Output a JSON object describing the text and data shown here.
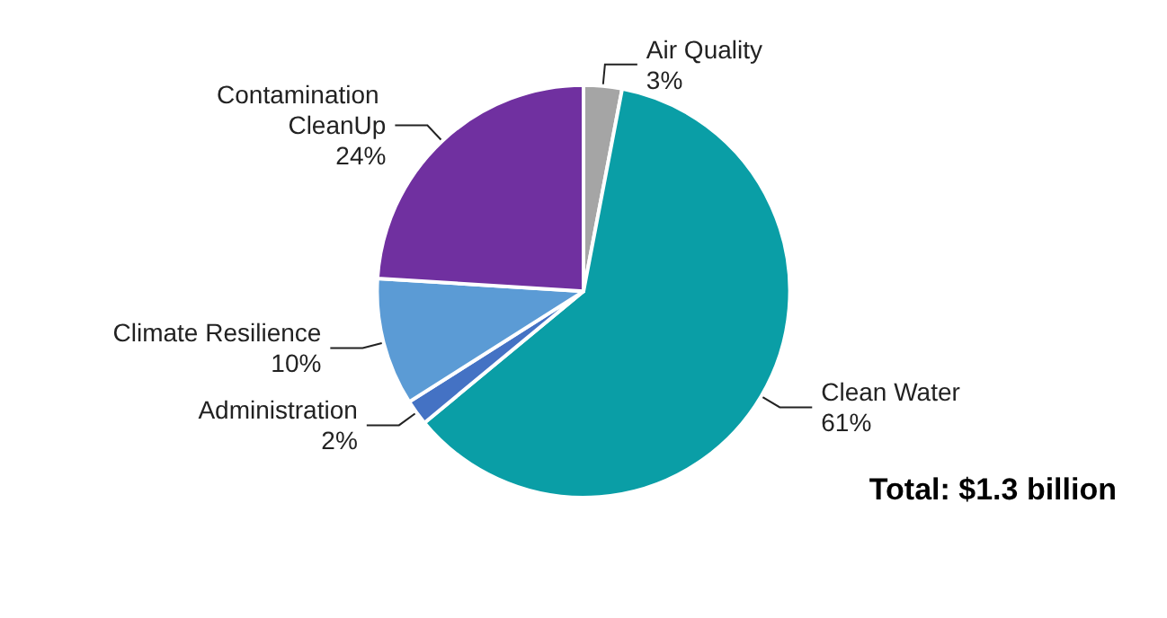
{
  "chart_data": {
    "type": "pie",
    "categories": [
      "Air Quality",
      "Clean Water",
      "Administration",
      "Climate Resilience",
      "Contamination CleanUp"
    ],
    "values": [
      3,
      61,
      2,
      10,
      24
    ],
    "colors": [
      "#a5a5a5",
      "#0a9ea6",
      "#4472c4",
      "#5b9bd5",
      "#7030a0"
    ],
    "value_labels": [
      "3%",
      "61%",
      "2%",
      "10%",
      "24%"
    ],
    "annotations": [
      "Total: $1.3 billion"
    ],
    "legend": false
  }
}
